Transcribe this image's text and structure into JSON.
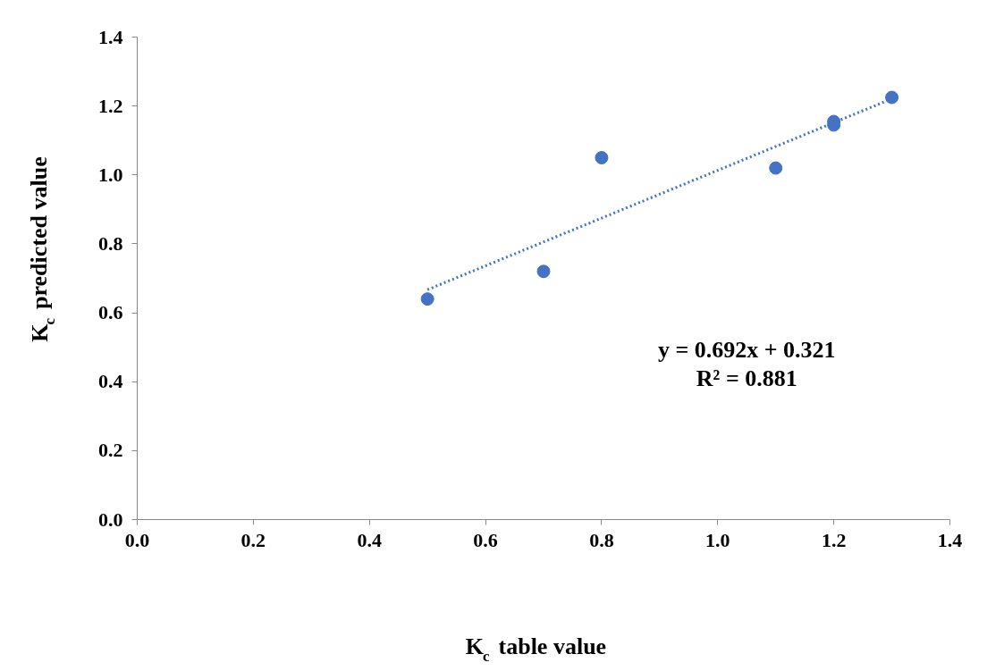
{
  "chart_data": {
    "type": "scatter",
    "xlabel": "K$_{c}$ table value",
    "ylabel": "K$_{c}$ predicted value",
    "x": [
      0.5,
      0.7,
      0.8,
      1.1,
      1.2,
      1.2,
      1.3
    ],
    "series": [
      {
        "color": "#4472c4",
        "values": [
          0.64,
          0.72,
          1.05,
          1.02,
          1.155,
          1.145,
          1.225
        ],
        "marker": "circle"
      },
      {
        "type": "line",
        "x": [
          0.5,
          1.3
        ],
        "color": "#4472c4",
        "values": [
          0.667,
          1.221
        ],
        "line_style": "dotted",
        "marker": "none"
      }
    ],
    "annotations": [
      "y = 0.692x + 0.321",
      "R² = 0.881"
    ],
    "xlim": [
      0,
      1.4
    ],
    "ylim": [
      0,
      1.4
    ],
    "xticks": [
      {
        "value": 0,
        "label": "0.0"
      },
      {
        "value": 0.2,
        "label": "0.2"
      },
      {
        "value": 0.4,
        "label": "0.4"
      },
      {
        "value": 0.6,
        "label": "0.6"
      },
      {
        "value": 0.8,
        "label": "0.8"
      },
      {
        "value": 1.0,
        "label": "1.0"
      },
      {
        "value": 1.2,
        "label": "1.2"
      },
      {
        "value": 1.4,
        "label": "1.4"
      }
    ],
    "yticks": [
      {
        "value": 0,
        "label": "0.0"
      },
      {
        "value": 0.2,
        "label": "0.2"
      },
      {
        "value": 0.4,
        "label": "0.4"
      },
      {
        "value": 0.6,
        "label": "0.6"
      },
      {
        "value": 0.8,
        "label": "0.8"
      },
      {
        "value": 1.0,
        "label": "1.0"
      },
      {
        "value": 1.2,
        "label": "1.2"
      },
      {
        "value": 1.4,
        "label": "1.4"
      }
    ],
    "grid": false
  }
}
